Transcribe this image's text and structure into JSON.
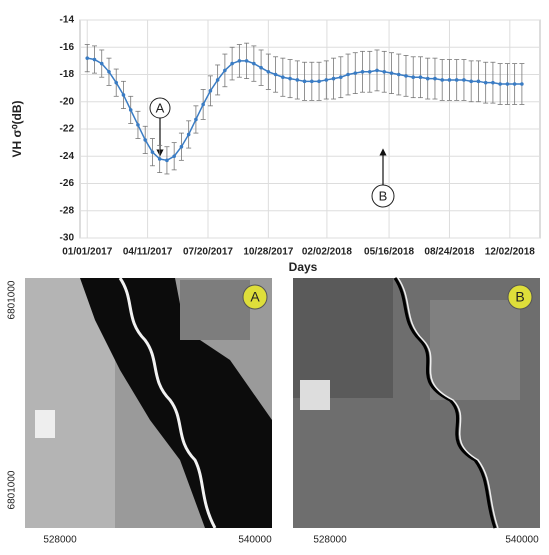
{
  "chart_data": {
    "type": "line",
    "y_label": "VH σ⁰(dB)",
    "x_label": "Days",
    "x": [
      "2017-01-01",
      "2017-01-13",
      "2017-01-25",
      "2017-02-06",
      "2017-02-18",
      "2017-03-02",
      "2017-03-14",
      "2017-03-26",
      "2017-04-07",
      "2017-04-19",
      "2017-05-01",
      "2017-05-13",
      "2017-05-25",
      "2017-06-06",
      "2017-06-18",
      "2017-06-30",
      "2017-07-12",
      "2017-07-24",
      "2017-08-05",
      "2017-08-17",
      "2017-08-29",
      "2017-09-10",
      "2017-09-22",
      "2017-10-04",
      "2017-10-16",
      "2017-10-28",
      "2017-11-09",
      "2017-11-21",
      "2017-12-03",
      "2017-12-15",
      "2017-12-27",
      "2018-01-08",
      "2018-01-20",
      "2018-02-01",
      "2018-02-13",
      "2018-02-25",
      "2018-03-09",
      "2018-03-21",
      "2018-04-02",
      "2018-04-14",
      "2018-04-26",
      "2018-05-08",
      "2018-05-20",
      "2018-06-01",
      "2018-06-13",
      "2018-06-25",
      "2018-07-07",
      "2018-07-19",
      "2018-07-31",
      "2018-08-12",
      "2018-08-24",
      "2018-09-05",
      "2018-09-17",
      "2018-09-29",
      "2018-10-11",
      "2018-10-23",
      "2018-11-04",
      "2018-11-16",
      "2018-11-28",
      "2018-12-10",
      "2018-12-22"
    ],
    "series": [
      {
        "color": "#3a7cc4",
        "values": [
          -16.8,
          -16.9,
          -17.2,
          -17.8,
          -18.6,
          -19.5,
          -20.6,
          -21.7,
          -22.8,
          -23.7,
          -24.2,
          -24.3,
          -24.0,
          -23.3,
          -22.4,
          -21.3,
          -20.2,
          -19.2,
          -18.4,
          -17.7,
          -17.2,
          -17.0,
          -17.0,
          -17.2,
          -17.5,
          -17.8,
          -18.0,
          -18.2,
          -18.3,
          -18.4,
          -18.5,
          -18.5,
          -18.5,
          -18.4,
          -18.3,
          -18.2,
          -18.0,
          -17.9,
          -17.8,
          -17.8,
          -17.7,
          -17.8,
          -17.9,
          -18.0,
          -18.1,
          -18.2,
          -18.2,
          -18.3,
          -18.3,
          -18.4,
          -18.4,
          -18.4,
          -18.4,
          -18.5,
          -18.5,
          -18.6,
          -18.6,
          -18.7,
          -18.7,
          -18.7,
          -18.7
        ],
        "errors": [
          1.0,
          1.0,
          1.0,
          1.0,
          1.0,
          1.0,
          1.0,
          1.0,
          1.0,
          1.0,
          1.0,
          1.0,
          1.0,
          1.0,
          1.0,
          1.0,
          1.1,
          1.1,
          1.1,
          1.2,
          1.2,
          1.2,
          1.3,
          1.3,
          1.3,
          1.3,
          1.3,
          1.4,
          1.4,
          1.4,
          1.4,
          1.4,
          1.4,
          1.4,
          1.5,
          1.5,
          1.5,
          1.5,
          1.5,
          1.5,
          1.5,
          1.5,
          1.5,
          1.5,
          1.5,
          1.5,
          1.5,
          1.5,
          1.5,
          1.5,
          1.5,
          1.5,
          1.5,
          1.5,
          1.5,
          1.5,
          1.5,
          1.5,
          1.5,
          1.5,
          1.5
        ]
      }
    ],
    "xlim": [
      "2016-12-20",
      "2019-01-21"
    ],
    "xticks": [
      {
        "value": "2017-01-01",
        "label": "01/01/2017"
      },
      {
        "value": "2017-04-11",
        "label": "04/11/2017"
      },
      {
        "value": "2017-07-20",
        "label": "07/20/2017"
      },
      {
        "value": "2017-10-28",
        "label": "10/28/2017"
      },
      {
        "value": "2018-02-02",
        "label": "02/02/2018"
      },
      {
        "value": "2018-05-16",
        "label": "05/16/2018"
      },
      {
        "value": "2018-08-24",
        "label": "08/24/2018"
      },
      {
        "value": "2018-12-02",
        "label": "12/02/2018"
      }
    ],
    "ylim": [
      -30,
      -14
    ],
    "yticks": [
      -30,
      -28,
      -26,
      -24,
      -22,
      -20,
      -18,
      -16,
      -14
    ],
    "grid": true,
    "annotations": [
      "A",
      "B"
    ]
  },
  "images": [
    {
      "label": "A",
      "yticks": [
        "6801000",
        "6801000"
      ],
      "xticks": [
        "528000",
        "540000"
      ]
    },
    {
      "label": "B",
      "xticks": [
        "528000",
        "540000"
      ]
    }
  ]
}
